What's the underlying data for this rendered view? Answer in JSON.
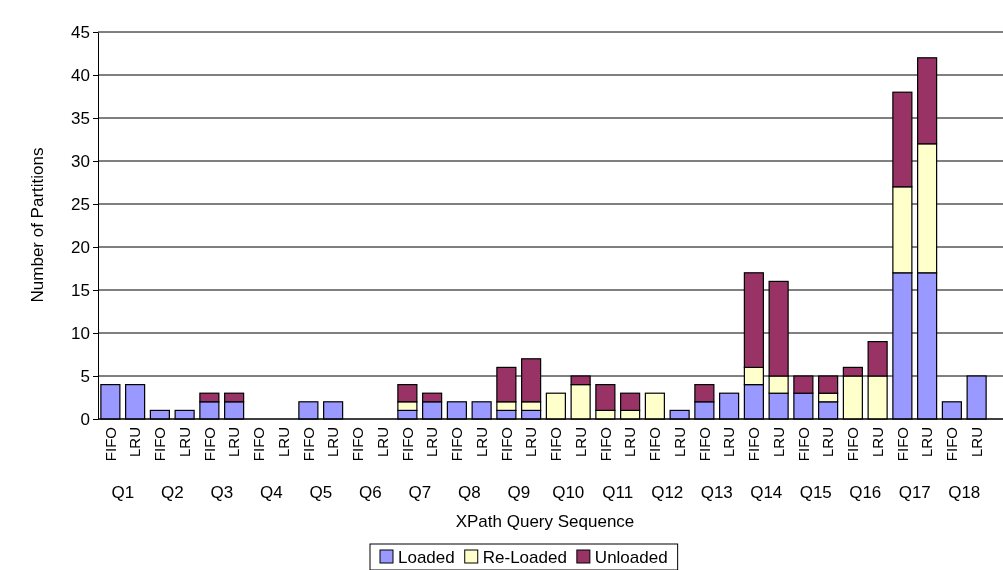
{
  "chart_data": {
    "type": "bar",
    "stacked": true,
    "xlabel": "XPath Query Sequence",
    "ylabel": "Number of Partitions",
    "categories": [
      "FIFO",
      "LRU",
      "FIFO",
      "LRU",
      "FIFO",
      "LRU",
      "FIFO",
      "LRU",
      "FIFO",
      "LRU",
      "FIFO",
      "LRU",
      "FIFO",
      "LRU",
      "FIFO",
      "LRU",
      "FIFO",
      "LRU",
      "FIFO",
      "LRU",
      "FIFO",
      "LRU",
      "FIFO",
      "LRU",
      "FIFO",
      "LRU",
      "FIFO",
      "LRU",
      "FIFO",
      "LRU",
      "FIFO",
      "LRU",
      "FIFO",
      "LRU",
      "FIFO",
      "LRU"
    ],
    "annotations": [
      "Q1",
      "Q2",
      "Q3",
      "Q4",
      "Q5",
      "Q6",
      "Q7",
      "Q8",
      "Q9",
      "Q10",
      "Q11",
      "Q12",
      "Q13",
      "Q14",
      "Q15",
      "Q16",
      "Q17",
      "Q18"
    ],
    "series": [
      {
        "name": "Loaded",
        "color": "#9999ff",
        "values": [
          4,
          4,
          1,
          1,
          2,
          2,
          0,
          0,
          2,
          2,
          0,
          0,
          1,
          2,
          2,
          2,
          1,
          1,
          0,
          0,
          0,
          0,
          0,
          1,
          2,
          3,
          4,
          3,
          3,
          2,
          0,
          0,
          17,
          17,
          2,
          5
        ]
      },
      {
        "name": "Re-Loaded",
        "color": "#ffffcc",
        "values": [
          0,
          0,
          0,
          0,
          0,
          0,
          0,
          0,
          0,
          0,
          0,
          0,
          1,
          0,
          0,
          0,
          1,
          1,
          3,
          4,
          1,
          1,
          3,
          0,
          0,
          0,
          2,
          2,
          0,
          1,
          5,
          5,
          10,
          15,
          0,
          0
        ]
      },
      {
        "name": "Unloaded",
        "color": "#993366",
        "values": [
          0,
          0,
          0,
          0,
          1,
          1,
          0,
          0,
          0,
          0,
          0,
          0,
          2,
          1,
          0,
          0,
          4,
          5,
          0,
          1,
          3,
          2,
          0,
          0,
          2,
          0,
          11,
          11,
          2,
          2,
          1,
          4,
          11,
          10,
          0,
          0
        ]
      }
    ],
    "ylim": [
      0,
      45
    ],
    "yticks": [
      0,
      5,
      10,
      15,
      20,
      25,
      30,
      35,
      40,
      45
    ],
    "grid": "y",
    "legend": "bottom"
  }
}
